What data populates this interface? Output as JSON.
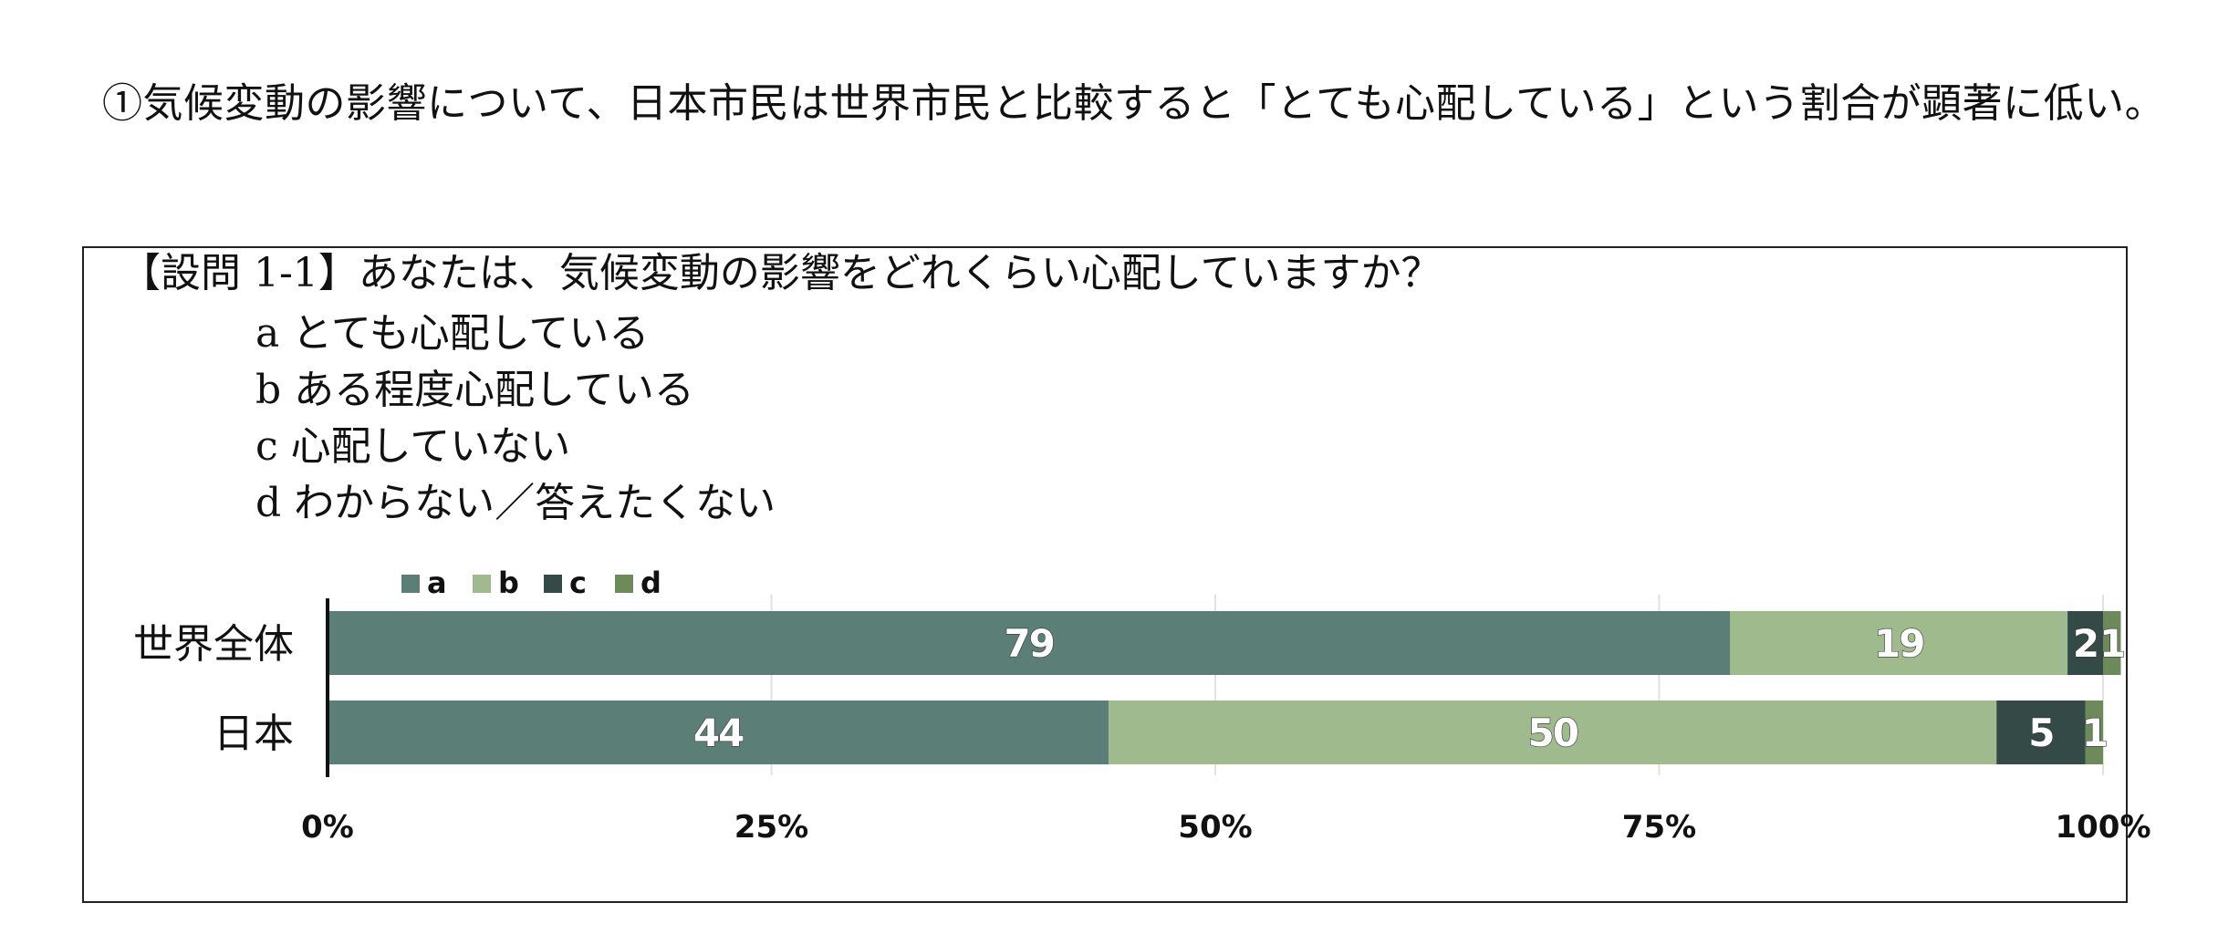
{
  "heading": "①気候変動の影響について、日本市民は世界市民と比較すると「とても心配している」という割合が顕著に低い。",
  "question": {
    "title": "【設問 1-1】あなたは、気候変動の影響をどれくらい心配していますか？",
    "options": [
      "a とても心配している",
      "b ある程度心配している",
      "c 心配していない",
      "d わからない／答えたくない"
    ]
  },
  "chart_data": {
    "type": "bar",
    "orientation": "horizontal",
    "stacked": "percent",
    "categories": [
      "世界全体",
      "日本"
    ],
    "series": [
      {
        "name": "a",
        "values": [
          79,
          44
        ],
        "color": "#5b7f76"
      },
      {
        "name": "b",
        "values": [
          19,
          50
        ],
        "color": "#9fba8d"
      },
      {
        "name": "c",
        "values": [
          2,
          5
        ],
        "color": "#344a46"
      },
      {
        "name": "d",
        "values": [
          1,
          1
        ],
        "color": "#6d8a5b"
      }
    ],
    "x_ticks": [
      "0%",
      "25%",
      "50%",
      "75%",
      "100%"
    ],
    "xlim": [
      0,
      100
    ],
    "grid": true,
    "legend_position": "top-left"
  }
}
